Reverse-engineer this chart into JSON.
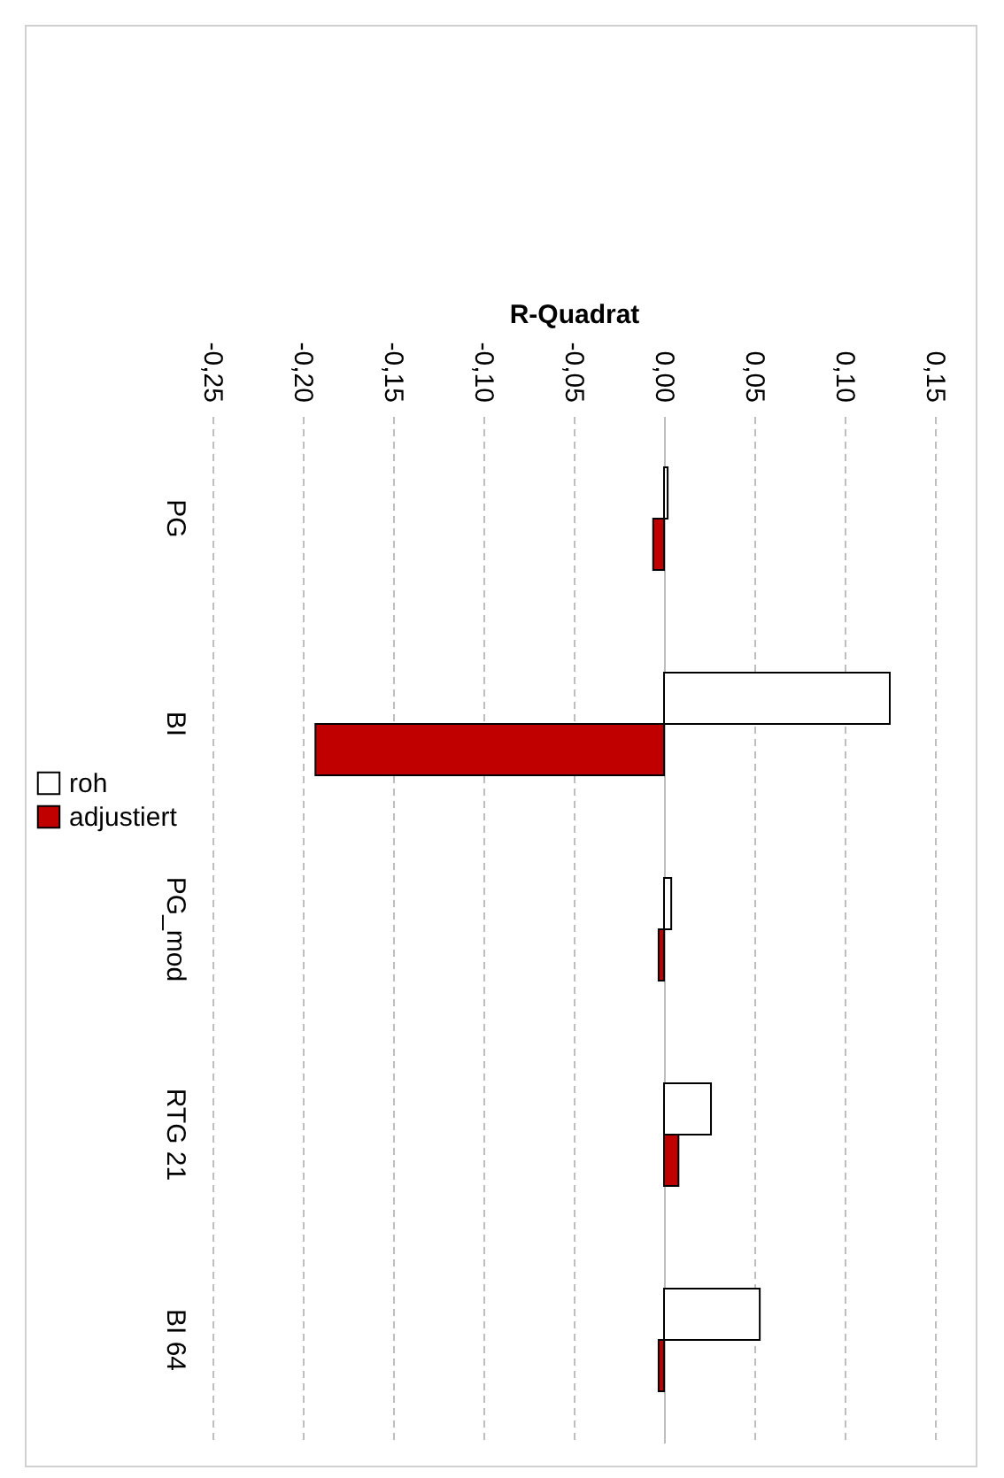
{
  "chart_data": {
    "type": "bar",
    "orientation": "horizontal",
    "xlabel": "R-Quadrat",
    "categories": [
      "PG",
      "BI",
      "PG_mod",
      "RTG 21",
      "BI 64"
    ],
    "series": [
      {
        "name": "roh",
        "color": "#ffffff",
        "values": [
          0.002,
          0.125,
          0.004,
          0.026,
          0.053
        ]
      },
      {
        "name": "adjustiert",
        "color": "#c00000",
        "values": [
          -0.006,
          -0.193,
          -0.003,
          0.008,
          -0.003
        ]
      }
    ],
    "xlim": [
      -0.25,
      0.15
    ],
    "xticks": [
      {
        "value": -0.25,
        "label": "-0,25"
      },
      {
        "value": -0.2,
        "label": "-0,20"
      },
      {
        "value": -0.15,
        "label": "-0,15"
      },
      {
        "value": -0.1,
        "label": "-0,10"
      },
      {
        "value": -0.05,
        "label": "-0,05"
      },
      {
        "value": 0,
        "label": "0,00"
      },
      {
        "value": 0.05,
        "label": "0,05"
      },
      {
        "value": 0.1,
        "label": "0,10"
      },
      {
        "value": 0.15,
        "label": "0,15"
      }
    ],
    "grid": "x",
    "legend": "left"
  }
}
